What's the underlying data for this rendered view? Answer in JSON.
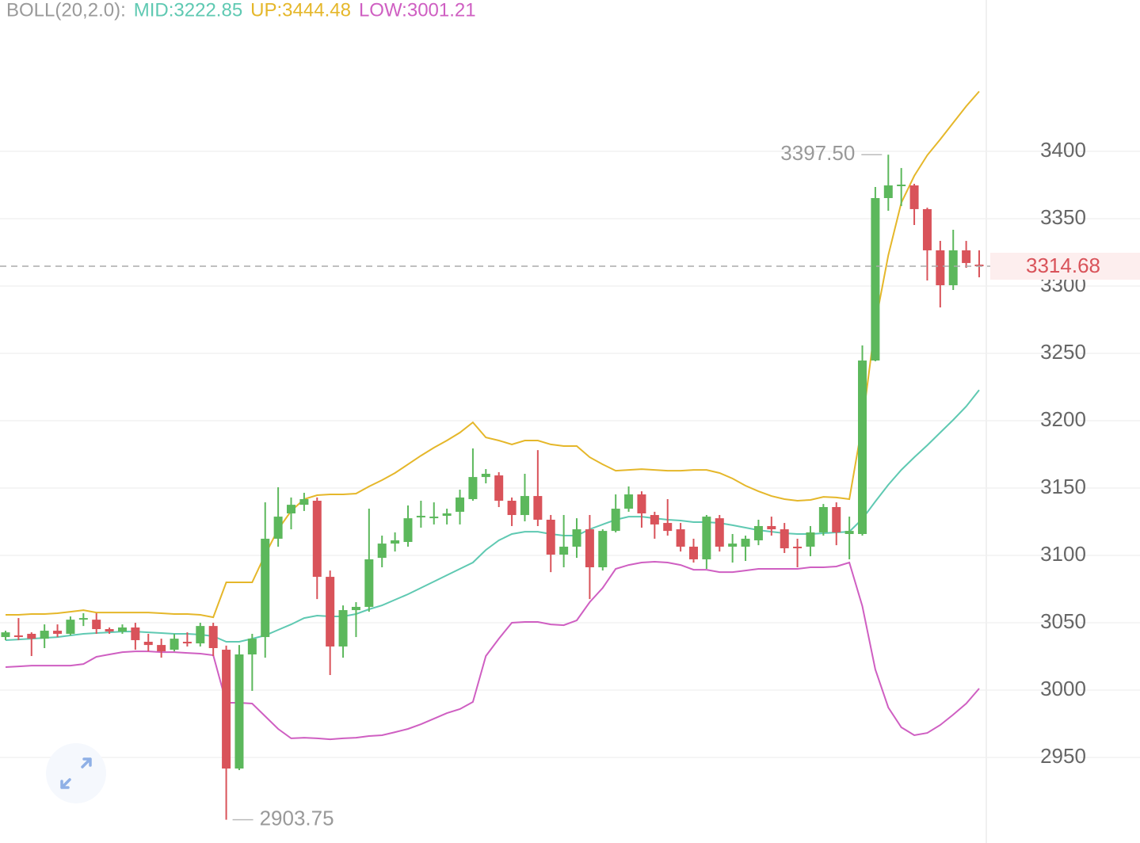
{
  "chart_data": {
    "type": "candlestick",
    "indicator": "BOLL(20,2.0):",
    "up_color": "#5cb85c",
    "down_color": "#d9535a",
    "open": [
      3039.4,
      3040.6,
      3041.8,
      3038.2,
      3044.1,
      3041.8,
      3053.0,
      3052.3,
      3045.3,
      3043.5,
      3046.5,
      3035.9,
      3033.5,
      3030.0,
      3035.9,
      3034.7,
      3047.6,
      3030.0,
      2941.8,
      3026.5,
      3039.4,
      3112.4,
      3131.2,
      3137.6,
      3140.6,
      3084.1,
      3032.4,
      3059.4,
      3061.8,
      3098.2,
      3108.8,
      3110.0,
      3129.0,
      3128.4,
      3129.4,
      3132.4,
      3141.8,
      3158.2,
      3159.4,
      3140.6,
      3130.0,
      3144.1,
      3126.5,
      3100.6,
      3106.5,
      3119.4,
      3091.2,
      3118.2,
      3134.7,
      3145.3,
      3130.0,
      3124.1,
      3119.4,
      3106.5,
      3097.1,
      3127.6,
      3106.5,
      3106.5,
      3111.2,
      3121.8,
      3119.4,
      3106.5,
      3106.5,
      3117.1,
      3135.9,
      3115.9,
      3115.9,
      3244.7,
      3365.3,
      3374.7,
      3374.7,
      3357.1,
      3326.5,
      3300.6,
      3326.5,
      3315.9
    ],
    "high": [
      3044.1,
      3053.5,
      3042.9,
      3048.8,
      3048.8,
      3054.7,
      3057.1,
      3057.1,
      3046.5,
      3048.8,
      3050.0,
      3041.8,
      3038.2,
      3041.8,
      3042.9,
      3050.0,
      3050.0,
      3033.0,
      3033.5,
      3041.8,
      3139.4,
      3150.6,
      3143.0,
      3146.5,
      3143.0,
      3088.8,
      3062.9,
      3065.3,
      3134.7,
      3114.7,
      3117.1,
      3137.1,
      3140.6,
      3139.4,
      3134.7,
      3148.8,
      3179.4,
      3164.1,
      3161.8,
      3143.0,
      3160.6,
      3178.2,
      3130.0,
      3130.0,
      3127.6,
      3130.0,
      3119.4,
      3145.3,
      3151.2,
      3147.6,
      3132.4,
      3141.8,
      3124.1,
      3112.4,
      3130.0,
      3130.0,
      3115.9,
      3114.7,
      3126.5,
      3128.8,
      3124.1,
      3112.4,
      3121.8,
      3138.2,
      3139.4,
      3128.8,
      3255.9,
      3373.5,
      3397.5,
      3387.6,
      3375.9,
      3358.2,
      3333.5,
      3341.8,
      3333.5,
      3326.5
    ],
    "low": [
      3037.1,
      3037.1,
      3025.3,
      3031.2,
      3039.4,
      3040.6,
      3047.6,
      3041.8,
      3041.8,
      3041.8,
      3030.0,
      3028.8,
      3024.1,
      3028.8,
      3032.4,
      3032.4,
      3025.3,
      2903.75,
      2940.6,
      2999.4,
      3024.1,
      3106.5,
      3119.4,
      3133.0,
      3067.6,
      3011.2,
      3024.1,
      3039.4,
      3058.2,
      3091.2,
      3102.9,
      3106.5,
      3120.6,
      3123.0,
      3123.0,
      3123.0,
      3140.6,
      3153.5,
      3135.9,
      3121.8,
      3125.3,
      3121.8,
      3087.6,
      3091.2,
      3098.2,
      3067.6,
      3088.8,
      3117.1,
      3132.4,
      3120.6,
      3112.4,
      3114.7,
      3102.9,
      3094.7,
      3090.0,
      3102.9,
      3094.7,
      3095.9,
      3107.6,
      3114.7,
      3101.8,
      3091.2,
      3099.4,
      3114.7,
      3107.6,
      3097.1,
      3114.7,
      3244.1,
      3355.9,
      3359.4,
      3345.3,
      3304.1,
      3284.1,
      3297.1,
      3313.5,
      3306.5
    ],
    "close": [
      3042.9,
      3040.0,
      3038.2,
      3044.1,
      3041.8,
      3052.3,
      3053.5,
      3045.3,
      3043.5,
      3046.5,
      3037.1,
      3033.5,
      3028.8,
      3038.2,
      3034.7,
      3047.6,
      3031.2,
      2941.8,
      3026.5,
      3038.2,
      3112.4,
      3128.8,
      3137.6,
      3141.8,
      3084.1,
      3032.4,
      3059.4,
      3061.8,
      3097.1,
      3108.8,
      3111.2,
      3127.6,
      3129.4,
      3128.8,
      3131.2,
      3143.0,
      3158.2,
      3160.6,
      3140.6,
      3130.0,
      3144.1,
      3126.5,
      3100.6,
      3106.5,
      3119.4,
      3091.2,
      3118.2,
      3134.7,
      3145.3,
      3131.2,
      3123.0,
      3118.2,
      3106.5,
      3097.1,
      3128.8,
      3106.5,
      3108.8,
      3112.4,
      3121.8,
      3119.4,
      3105.3,
      3105.3,
      3117.1,
      3135.9,
      3117.1,
      3118.2,
      3244.7,
      3365.3,
      3374.7,
      3375.3,
      3357.1,
      3326.5,
      3300.6,
      3326.5,
      3317.1,
      3314.68
    ],
    "series": [
      {
        "name": "MID:3222.85",
        "color": "#5fc9b2",
        "values": [
          3037.1,
          3037.6,
          3038.2,
          3038.8,
          3039.4,
          3040.6,
          3041.8,
          3042.4,
          3042.9,
          3043.5,
          3043.5,
          3042.9,
          3042.4,
          3041.8,
          3041.8,
          3041.2,
          3040.0,
          3035.9,
          3035.9,
          3038.2,
          3040.6,
          3044.7,
          3048.8,
          3053.5,
          3055.3,
          3054.7,
          3054.7,
          3056.5,
          3060.0,
          3062.9,
          3067.1,
          3071.2,
          3075.9,
          3080.6,
          3085.3,
          3090.0,
          3094.7,
          3104.1,
          3111.2,
          3115.9,
          3117.6,
          3117.6,
          3115.9,
          3114.7,
          3114.7,
          3119.4,
          3123.0,
          3126.5,
          3128.8,
          3128.8,
          3127.6,
          3126.5,
          3125.9,
          3124.7,
          3124.7,
          3124.1,
          3122.4,
          3120.6,
          3118.8,
          3117.6,
          3116.5,
          3115.9,
          3115.9,
          3116.5,
          3117.1,
          3117.6,
          3127.1,
          3140.0,
          3152.4,
          3163.5,
          3172.9,
          3181.8,
          3191.2,
          3200.6,
          3210.6,
          3222.85
        ]
      },
      {
        "name": "UP:3444.48",
        "color": "#e5b72a",
        "values": [
          3055.9,
          3055.9,
          3056.5,
          3056.5,
          3057.1,
          3058.2,
          3059.4,
          3057.6,
          3057.6,
          3057.6,
          3057.6,
          3057.6,
          3057.1,
          3056.5,
          3056.5,
          3055.9,
          3054.1,
          3080.0,
          3080.0,
          3080.0,
          3100.6,
          3119.4,
          3133.0,
          3141.8,
          3144.7,
          3145.3,
          3145.3,
          3145.9,
          3151.2,
          3155.9,
          3161.2,
          3167.6,
          3174.1,
          3180.0,
          3185.3,
          3191.2,
          3198.8,
          3187.6,
          3185.3,
          3182.4,
          3185.3,
          3185.3,
          3182.4,
          3181.2,
          3181.2,
          3172.9,
          3167.6,
          3162.9,
          3163.5,
          3164.1,
          3163.5,
          3162.9,
          3162.9,
          3163.5,
          3163.5,
          3161.2,
          3157.1,
          3151.8,
          3147.6,
          3144.1,
          3141.8,
          3140.6,
          3141.2,
          3143.5,
          3143.0,
          3141.8,
          3197.6,
          3272.3,
          3322.9,
          3361.8,
          3381.8,
          3397.1,
          3408.8,
          3421.2,
          3433.5,
          3444.48
        ]
      },
      {
        "name": "LOW:3001.21",
        "color": "#cf5fc2",
        "values": [
          3017.1,
          3017.6,
          3018.2,
          3018.2,
          3018.2,
          3018.2,
          3019.4,
          3024.7,
          3026.5,
          3028.2,
          3028.8,
          3028.8,
          3028.2,
          3028.2,
          3027.6,
          3027.1,
          3025.9,
          2990.6,
          2990.6,
          2990.0,
          2980.6,
          2971.2,
          2964.2,
          2964.7,
          2964.2,
          2963.5,
          2964.2,
          2964.7,
          2965.9,
          2966.5,
          2968.8,
          2971.2,
          2974.7,
          2978.8,
          2982.9,
          2985.9,
          2991.2,
          3025.3,
          3038.2,
          3050.0,
          3050.6,
          3050.6,
          3048.8,
          3048.2,
          3051.8,
          3065.3,
          3075.9,
          3090.0,
          3092.9,
          3094.7,
          3095.3,
          3094.7,
          3092.9,
          3089.4,
          3089.4,
          3087.6,
          3087.6,
          3088.8,
          3090.0,
          3090.0,
          3090.0,
          3090.0,
          3091.2,
          3091.2,
          3091.8,
          3094.7,
          3062.4,
          3015.3,
          2987.1,
          2972.4,
          2966.5,
          2968.2,
          2974.1,
          2981.8,
          2990.0,
          3001.21
        ]
      }
    ],
    "ylim": [
      2886.5,
      3512.35
    ],
    "yticks": [
      2950,
      3000,
      3050,
      3100,
      3150,
      3200,
      3250,
      3300,
      3350,
      3400
    ],
    "grid": true,
    "last_price": 3314.68,
    "max_label": {
      "value": 3397.5,
      "label": "3397.50"
    },
    "min_label": 2903.75
  }
}
